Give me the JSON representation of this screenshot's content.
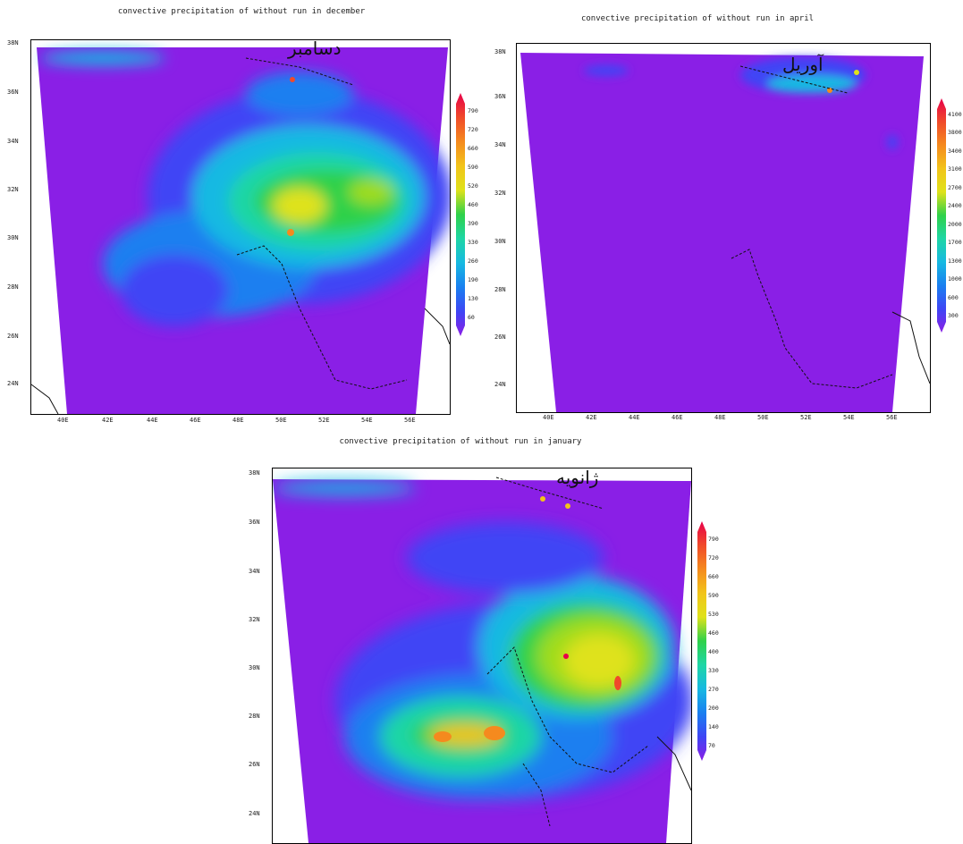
{
  "panels": [
    {
      "id": "december",
      "title": "convective precipitation of without run in december",
      "month_label": "دسامبر",
      "lat_labels": [
        "38N",
        "36N",
        "34N",
        "32N",
        "30N",
        "28N",
        "26N",
        "24N"
      ],
      "lon_labels": [
        "40E",
        "42E",
        "44E",
        "46E",
        "48E",
        "50E",
        "52E",
        "54E",
        "56E"
      ],
      "colorbar": [
        "790",
        "720",
        "660",
        "590",
        "520",
        "460",
        "390",
        "330",
        "260",
        "190",
        "130",
        "60"
      ]
    },
    {
      "id": "april",
      "title": "convective precipitation of without run in april",
      "month_label": "آوریل",
      "lat_labels": [
        "38N",
        "36N",
        "34N",
        "32N",
        "30N",
        "28N",
        "26N",
        "24N"
      ],
      "lon_labels": [
        "40E",
        "42E",
        "44E",
        "46E",
        "48E",
        "50E",
        "52E",
        "54E",
        "56E"
      ],
      "colorbar": [
        "4100",
        "3800",
        "3400",
        "3100",
        "2700",
        "2400",
        "2000",
        "1700",
        "1300",
        "1000",
        "600",
        "300"
      ]
    },
    {
      "id": "january",
      "title": "convective precipitation of without run in january",
      "month_label": "ژانویه",
      "lat_labels": [
        "38N",
        "36N",
        "34N",
        "32N",
        "30N",
        "28N",
        "26N",
        "24N"
      ],
      "lon_labels": [],
      "colorbar": [
        "790",
        "720",
        "660",
        "590",
        "530",
        "460",
        "400",
        "330",
        "270",
        "200",
        "140",
        "70"
      ]
    }
  ],
  "colors": {
    "background": "#8a1fe6",
    "ramp": [
      "#e8004a",
      "#f04a2a",
      "#f58a1e",
      "#f2c41a",
      "#dfe21a",
      "#9fdc1a",
      "#2fd14a",
      "#1ed6a6",
      "#17b9e2",
      "#1a7ff0",
      "#3f45f5",
      "#8a1fe6"
    ]
  }
}
